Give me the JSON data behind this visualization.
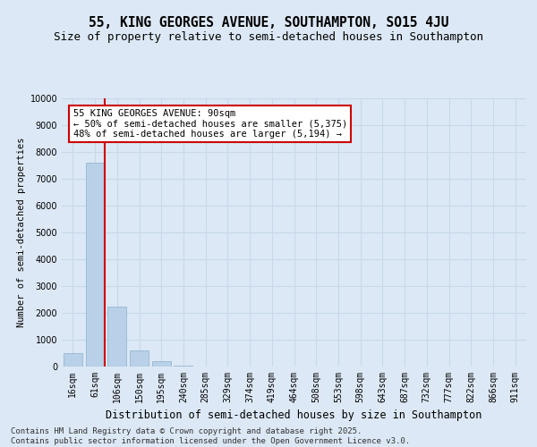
{
  "title": "55, KING GEORGES AVENUE, SOUTHAMPTON, SO15 4JU",
  "subtitle": "Size of property relative to semi-detached houses in Southampton",
  "xlabel": "Distribution of semi-detached houses by size in Southampton",
  "ylabel": "Number of semi-detached properties",
  "categories": [
    "16sqm",
    "61sqm",
    "106sqm",
    "150sqm",
    "195sqm",
    "240sqm",
    "285sqm",
    "329sqm",
    "374sqm",
    "419sqm",
    "464sqm",
    "508sqm",
    "553sqm",
    "598sqm",
    "643sqm",
    "687sqm",
    "732sqm",
    "777sqm",
    "822sqm",
    "866sqm",
    "911sqm"
  ],
  "values": [
    500,
    7600,
    2250,
    600,
    200,
    50,
    15,
    8,
    5,
    3,
    2,
    1,
    1,
    0,
    0,
    0,
    0,
    0,
    0,
    0,
    0
  ],
  "bar_color": "#b8d0e8",
  "bar_edge_color": "#8ab0cc",
  "vline_color": "#cc0000",
  "annotation_box_text": "55 KING GEORGES AVENUE: 90sqm\n← 50% of semi-detached houses are smaller (5,375)\n48% of semi-detached houses are larger (5,194) →",
  "annotation_box_color": "#cc0000",
  "annotation_box_facecolor": "white",
  "footnote": "Contains HM Land Registry data © Crown copyright and database right 2025.\nContains public sector information licensed under the Open Government Licence v3.0.",
  "background_color": "#dce8f5",
  "plot_bg_color": "#dce8f5",
  "grid_color": "#c8d8ea",
  "ylim": [
    0,
    10000
  ],
  "yticks": [
    0,
    1000,
    2000,
    3000,
    4000,
    5000,
    6000,
    7000,
    8000,
    9000,
    10000
  ],
  "title_fontsize": 10.5,
  "subtitle_fontsize": 9,
  "xlabel_fontsize": 8.5,
  "ylabel_fontsize": 7.5,
  "tick_fontsize": 7,
  "annotation_fontsize": 7.5,
  "footnote_fontsize": 6.5
}
